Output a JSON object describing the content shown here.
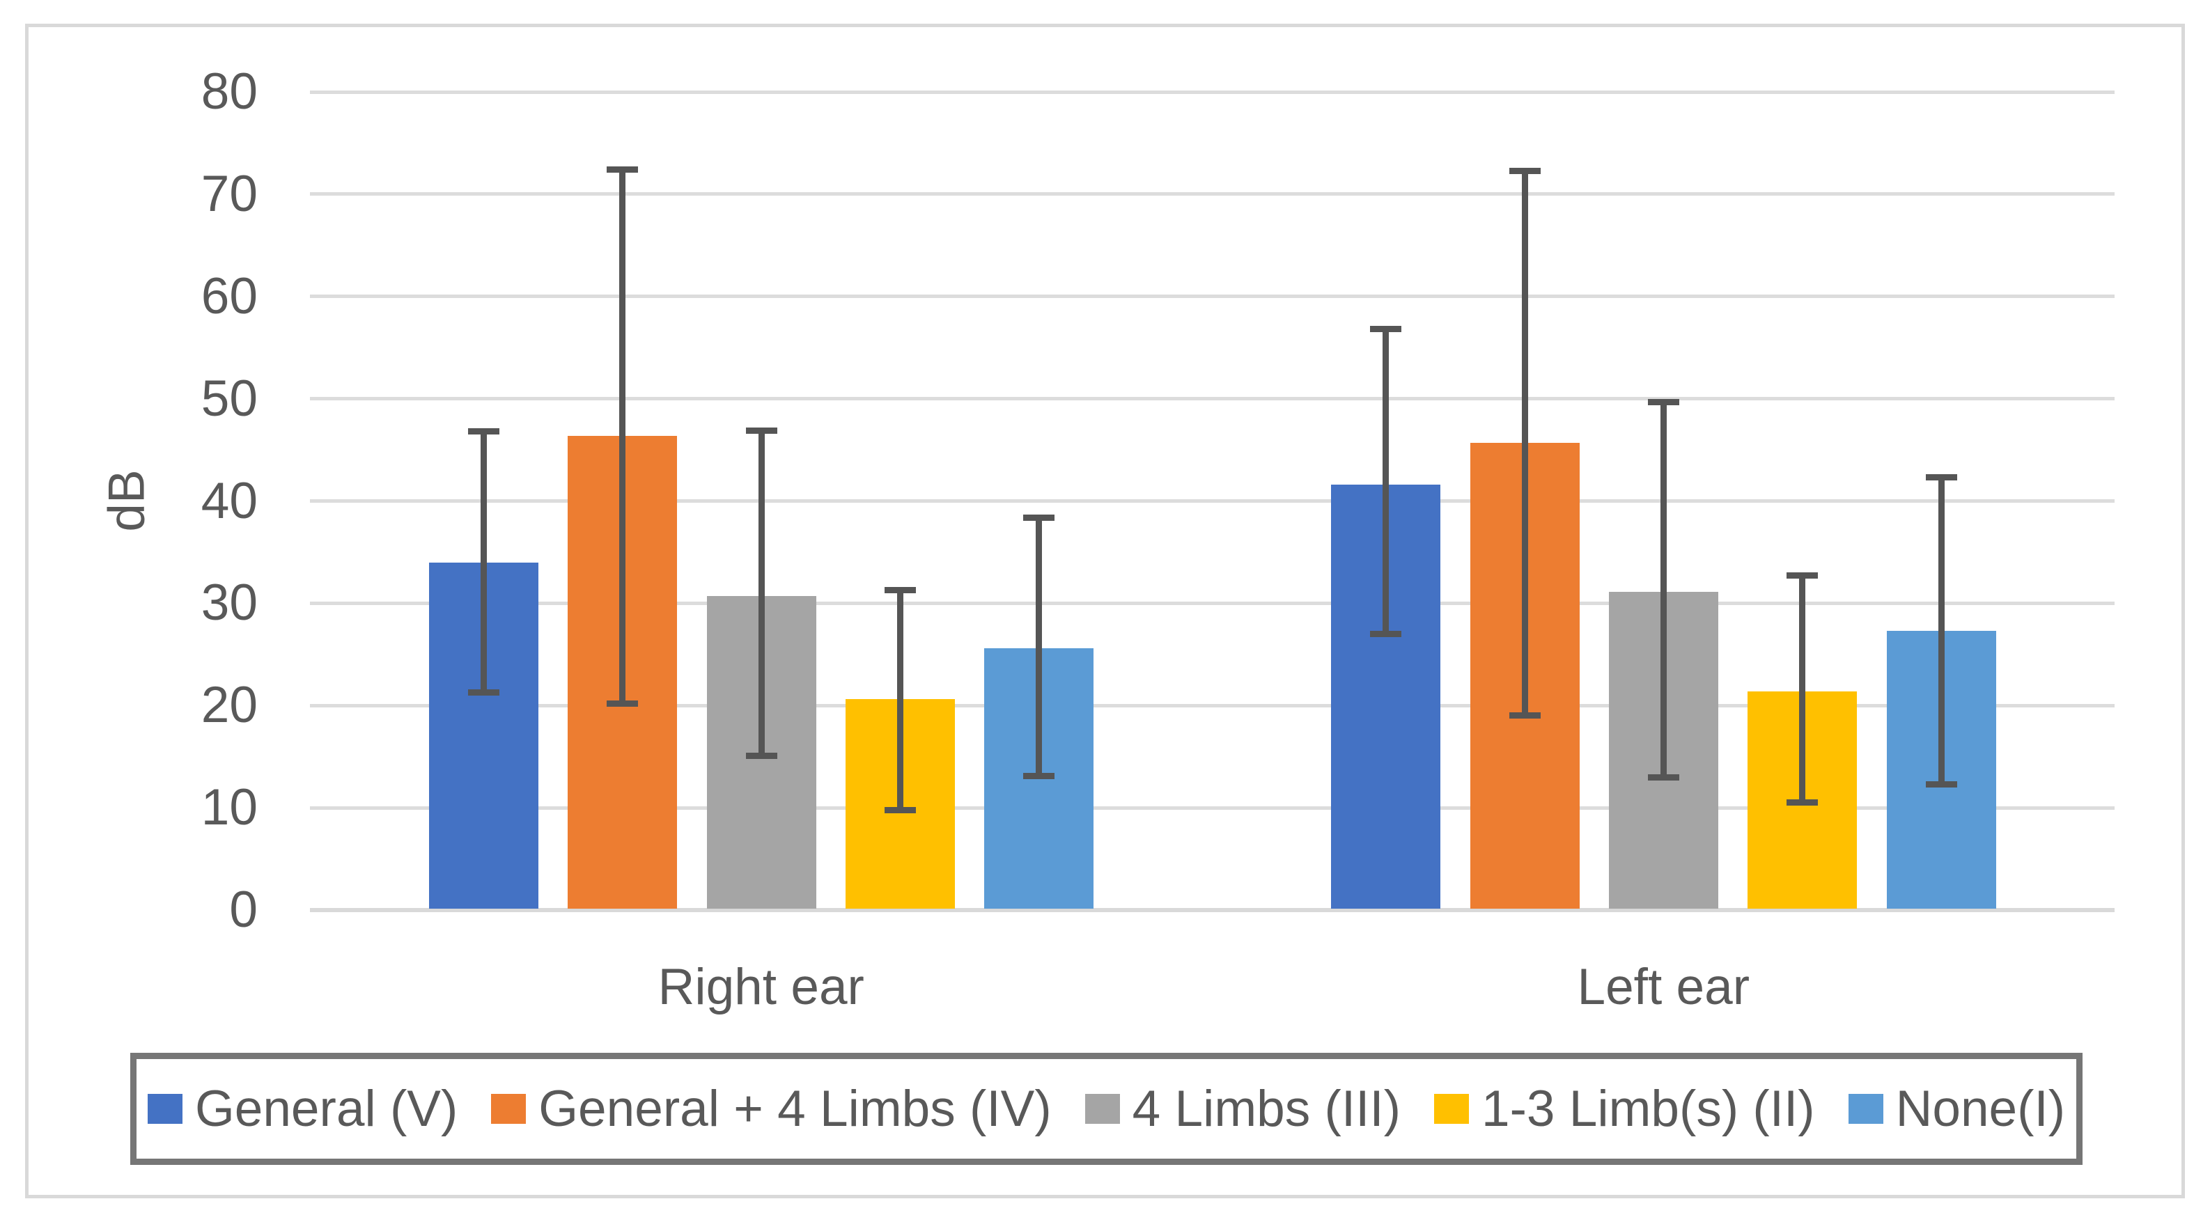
{
  "chart_data": {
    "type": "bar",
    "title": "",
    "ylabel": "dB",
    "xlabel": "",
    "ylim": [
      0,
      80
    ],
    "yticks": [
      0,
      10,
      20,
      30,
      40,
      50,
      60,
      70,
      80
    ],
    "grid": true,
    "legend_position": "bottom",
    "error_bars": true,
    "categories": [
      "Right ear",
      "Left ear"
    ],
    "series": [
      {
        "name": "General (V)",
        "color": "#4472C4",
        "values": [
          34.0,
          41.6
        ],
        "error_top": [
          46.8,
          56.8
        ],
        "error_bottom": [
          21.3,
          27.0
        ]
      },
      {
        "name": "General + 4 Limbs (IV)",
        "color": "#ED7D31",
        "values": [
          46.4,
          45.7
        ],
        "error_top": [
          72.4,
          72.3
        ],
        "error_bottom": [
          20.2,
          19.0
        ]
      },
      {
        "name": "4 Limbs (III)",
        "color": "#A5A5A5",
        "values": [
          30.7,
          31.1
        ],
        "error_top": [
          46.9,
          49.7
        ],
        "error_bottom": [
          15.1,
          13.0
        ]
      },
      {
        "name": "1-3 Limb(s) (II)",
        "color": "#FFC000",
        "values": [
          20.6,
          21.4
        ],
        "error_top": [
          31.3,
          32.7
        ],
        "error_bottom": [
          9.8,
          10.5
        ]
      },
      {
        "name": "None(I)",
        "color": "#5B9BD5",
        "values": [
          25.6,
          27.3
        ],
        "error_top": [
          38.4,
          42.3
        ],
        "error_bottom": [
          13.1,
          12.3
        ]
      }
    ],
    "styles": {
      "gridline_color": "#DCDCDC",
      "axis_line_color": "#D9D9D9",
      "error_bar_color": "#555555",
      "text_color": "#595959",
      "legend_border_color": "#767676",
      "frame_border_color": "#D9D9D9",
      "background": "#FFFFFF"
    }
  }
}
